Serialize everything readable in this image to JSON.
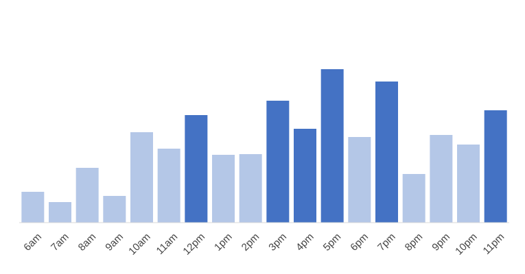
{
  "chart_data": {
    "type": "bar",
    "categories": [
      "6am",
      "7am",
      "8am",
      "9am",
      "10am",
      "11am",
      "12pm",
      "1pm",
      "2pm",
      "3pm",
      "4pm",
      "5pm",
      "6pm",
      "7pm",
      "8pm",
      "9pm",
      "10pm",
      "11pm"
    ],
    "values": [
      45,
      30,
      80,
      39,
      132,
      108,
      157,
      99,
      100,
      178,
      137,
      224,
      125,
      206,
      71,
      128,
      114,
      164
    ],
    "colors": [
      "#b4c7e7",
      "#b4c7e7",
      "#b4c7e7",
      "#b4c7e7",
      "#b4c7e7",
      "#b4c7e7",
      "#4472c4",
      "#b4c7e7",
      "#b4c7e7",
      "#4472c4",
      "#4472c4",
      "#4472c4",
      "#b4c7e7",
      "#4472c4",
      "#b4c7e7",
      "#b4c7e7",
      "#b4c7e7",
      "#4472c4"
    ],
    "ylim": [
      0,
      250
    ]
  }
}
